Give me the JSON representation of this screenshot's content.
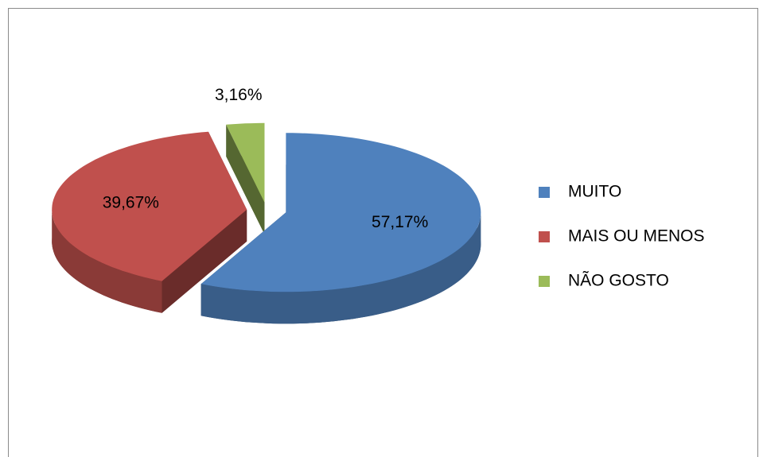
{
  "chart_data": {
    "type": "pie",
    "categories": [
      "MUITO",
      "MAIS OU MENOS",
      "NÃO GOSTO"
    ],
    "values": [
      57.17,
      39.67,
      3.16
    ],
    "value_labels": [
      "57,17%",
      "39,67%",
      "3,16%"
    ],
    "colors": [
      "#4f81bd",
      "#c0504d",
      "#9bbb59"
    ],
    "legend": "right"
  }
}
